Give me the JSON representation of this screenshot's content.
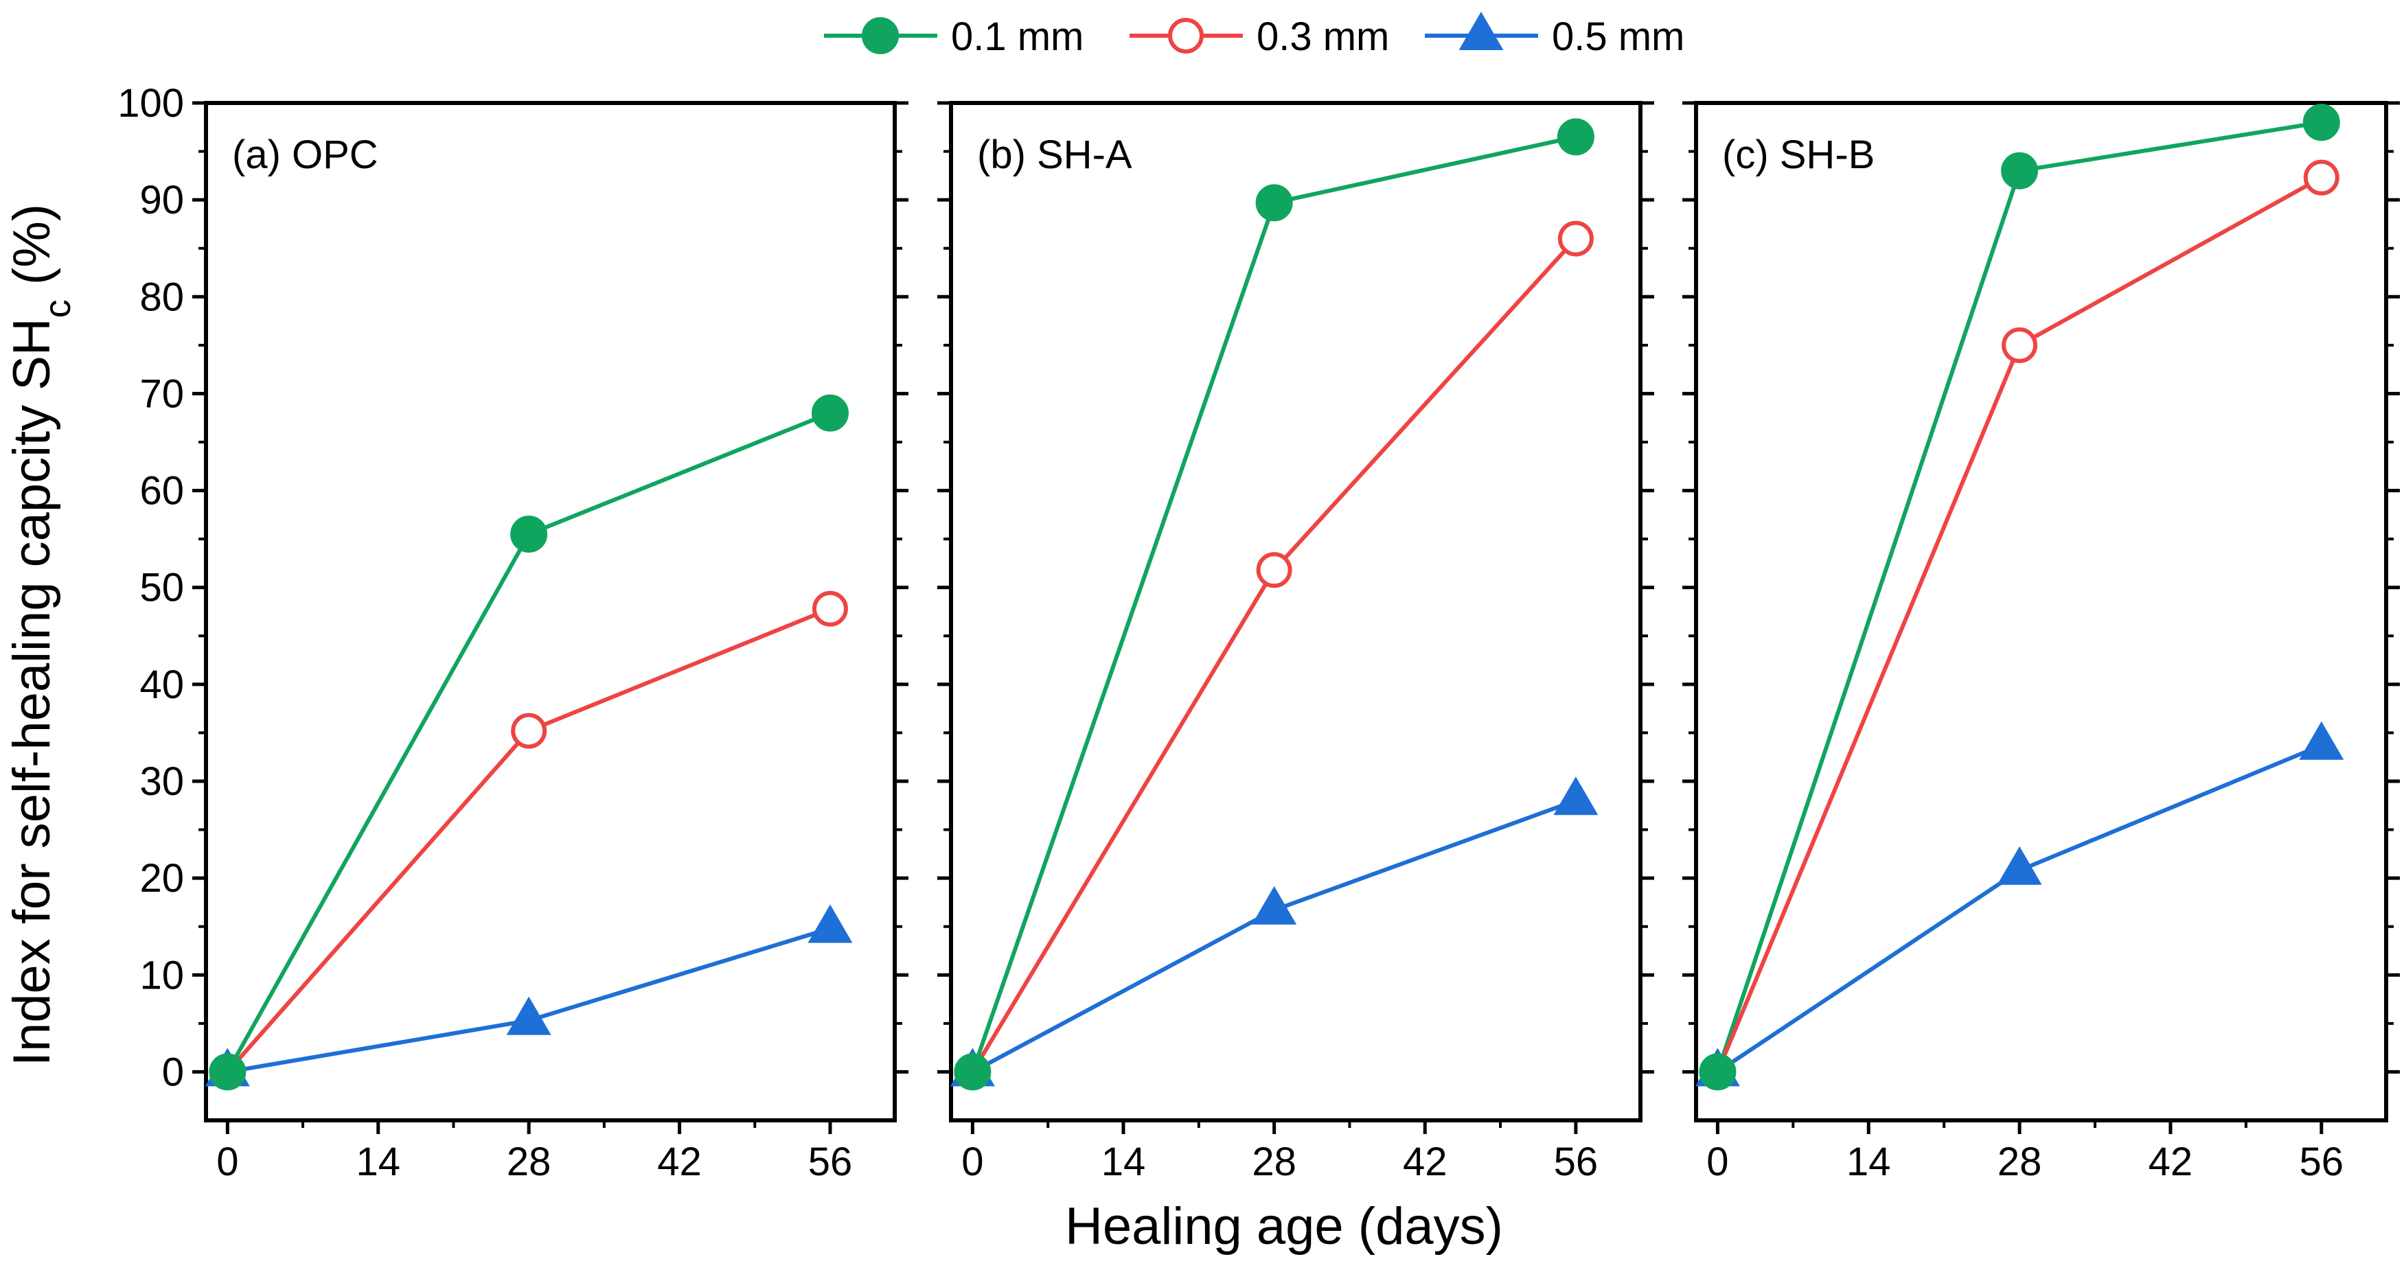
{
  "chart_data": [
    {
      "type": "line",
      "panel_label": "(a) OPC",
      "x": [
        0,
        28,
        56
      ],
      "xticks": [
        0,
        14,
        28,
        42,
        56
      ],
      "xlim": [
        -2,
        62
      ],
      "ylim": [
        -5,
        100
      ],
      "yticks": [
        0,
        10,
        20,
        30,
        40,
        50,
        60,
        70,
        80,
        90,
        100
      ],
      "series": [
        {
          "name": "0.1 mm",
          "values": [
            0,
            55.5,
            68
          ]
        },
        {
          "name": "0.3 mm",
          "values": [
            0,
            35.2,
            47.8
          ]
        },
        {
          "name": "0.5 mm",
          "values": [
            0,
            5.3,
            14.8
          ]
        }
      ]
    },
    {
      "type": "line",
      "panel_label": "(b) SH-A",
      "x": [
        0,
        28,
        56
      ],
      "xticks": [
        0,
        14,
        28,
        42,
        56
      ],
      "xlim": [
        -2,
        62
      ],
      "ylim": [
        -5,
        100
      ],
      "yticks": [
        0,
        10,
        20,
        30,
        40,
        50,
        60,
        70,
        80,
        90,
        100
      ],
      "series": [
        {
          "name": "0.1 mm",
          "values": [
            0,
            89.7,
            96.5
          ]
        },
        {
          "name": "0.3 mm",
          "values": [
            0,
            51.8,
            86
          ]
        },
        {
          "name": "0.5 mm",
          "values": [
            0,
            16.7,
            28
          ]
        }
      ]
    },
    {
      "type": "line",
      "panel_label": "(c) SH-B",
      "x": [
        0,
        28,
        56
      ],
      "xticks": [
        0,
        14,
        28,
        42,
        56
      ],
      "xlim": [
        -2,
        62
      ],
      "ylim": [
        -5,
        100
      ],
      "yticks": [
        0,
        10,
        20,
        30,
        40,
        50,
        60,
        70,
        80,
        90,
        100
      ],
      "series": [
        {
          "name": "0.1 mm",
          "values": [
            0,
            93,
            98
          ]
        },
        {
          "name": "0.3 mm",
          "values": [
            0,
            75,
            92.3
          ]
        },
        {
          "name": "0.5 mm",
          "values": [
            0,
            20.8,
            33.7
          ]
        }
      ]
    }
  ],
  "legend": {
    "position": "top-center",
    "entries": [
      {
        "name": "0.1 mm",
        "color": "#10a55f",
        "marker": "filled-circle"
      },
      {
        "name": "0.3 mm",
        "color": "#ee4444",
        "marker": "open-circle"
      },
      {
        "name": "0.5 mm",
        "color": "#1e6fd6",
        "marker": "filled-triangle"
      }
    ]
  },
  "axes": {
    "ylabel_main": "Index for self-healing capcity SH",
    "ylabel_sub": "c",
    "ylabel_suffix": " (%)",
    "xlabel": "Healing age (days)"
  }
}
